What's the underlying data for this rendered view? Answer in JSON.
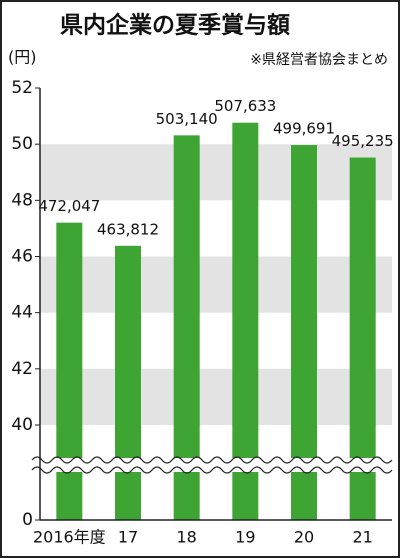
{
  "chart_data": {
    "type": "bar",
    "title": "県内企業の夏季賞与額",
    "subtitle": "※県経営者協会まとめ",
    "y_label": "(円)",
    "categories": [
      "2016年度",
      "17",
      "18",
      "19",
      "20",
      "21"
    ],
    "values": [
      47.2047,
      46.3812,
      50.314,
      50.7633,
      49.9691,
      49.5235
    ],
    "value_labels": [
      "472,047",
      "463,812",
      "503,140",
      "507,633",
      "499,691",
      "495,235"
    ],
    "color": "#3ea535",
    "ylim": [
      0,
      52
    ],
    "yticks": [
      0,
      40,
      42,
      44,
      46,
      48,
      50,
      52
    ],
    "broken_axis": true,
    "grid_bands": true,
    "band_color": "#e3e3e3"
  }
}
